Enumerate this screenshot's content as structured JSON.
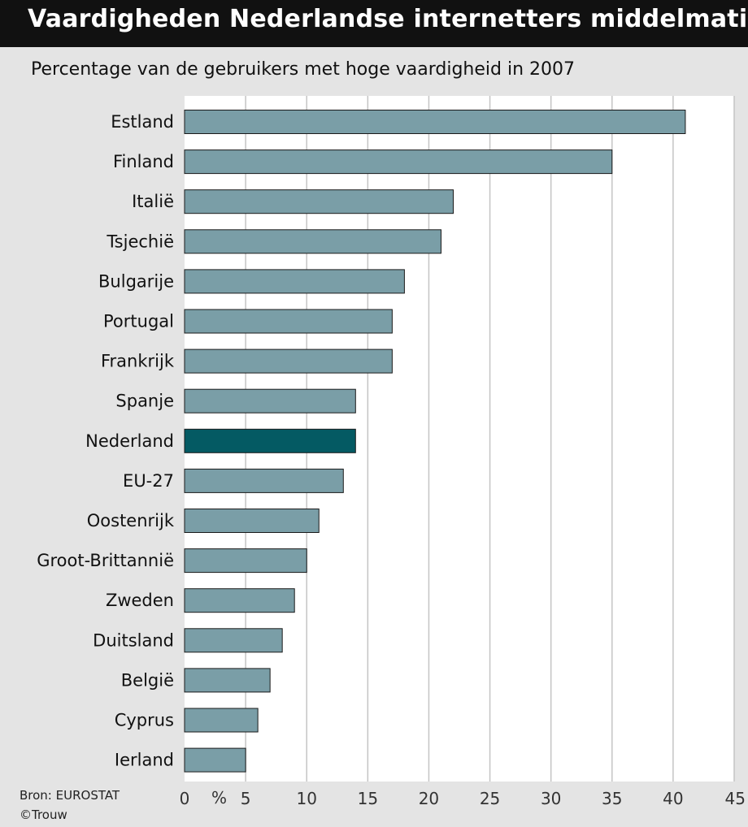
{
  "header": {
    "title": "Vaardigheden Nederlandse internetters middelmatig",
    "subtitle": "Percentage van de gebruikers met hoge vaardigheid in 2007"
  },
  "footer": {
    "source": "Bron: EUROSTAT",
    "credit": "©Trouw"
  },
  "colors": {
    "bar": "#7a9ea7",
    "highlight": "#045a63",
    "bar_stroke": "#1a1a1a",
    "grid": "#c4c4c4"
  },
  "chart_data": {
    "type": "bar",
    "orientation": "horizontal",
    "title": "Vaardigheden Nederlandse internetters middelmatig",
    "subtitle": "Percentage van de gebruikers met hoge vaardigheid in 2007",
    "xlabel": "%",
    "ylabel": "",
    "categories": [
      "Estland",
      "Finland",
      "Italië",
      "Tsjechië",
      "Bulgarije",
      "Portugal",
      "Frankrijk",
      "Spanje",
      "Nederland",
      "EU-27",
      "Oostenrijk",
      "Groot-Brittannië",
      "Zweden",
      "Duitsland",
      "België",
      "Cyprus",
      "Ierland"
    ],
    "values": [
      41,
      35,
      22,
      21,
      18,
      17,
      17,
      14,
      14,
      13,
      11,
      10,
      9,
      8,
      7,
      6,
      5
    ],
    "highlight": "Nederland",
    "xlim": [
      0,
      45
    ],
    "xticks": [
      0,
      5,
      10,
      15,
      20,
      25,
      30,
      35,
      40,
      45
    ],
    "grid": true,
    "legend": "none"
  }
}
